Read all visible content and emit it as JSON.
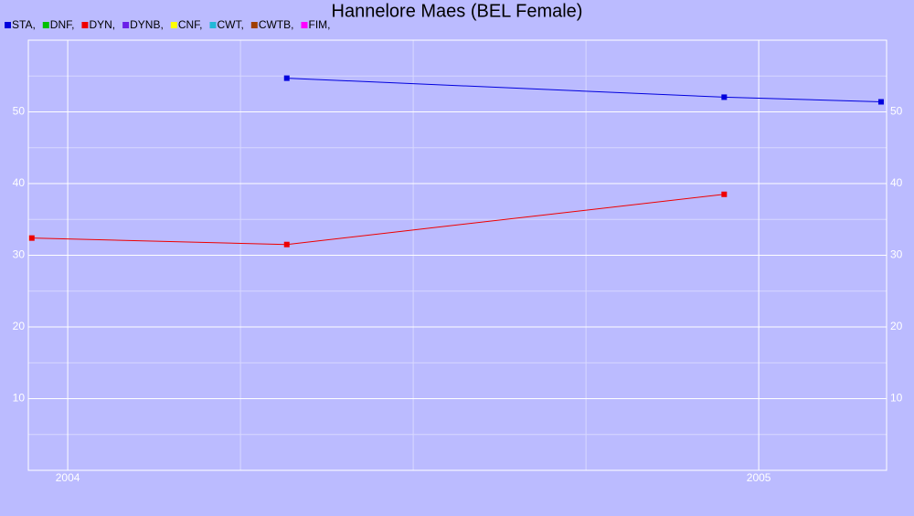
{
  "chart_data": {
    "type": "line",
    "title": "Hannelore Maes (BEL Female)",
    "series": [
      {
        "name": "STA,",
        "color": "#0000dd",
        "x": [
          2004.317,
          2004.95,
          2005.177
        ],
        "values": [
          54.7,
          52.05,
          51.4
        ]
      },
      {
        "name": "DNF,",
        "color": "#00c000",
        "x": [],
        "values": []
      },
      {
        "name": "DYN,",
        "color": "#ee0000",
        "x": [
          2003.948,
          2004.317,
          2004.95
        ],
        "values": [
          32.4,
          31.5,
          38.5
        ]
      },
      {
        "name": "DYNB,",
        "color": "#6a20e8",
        "x": [],
        "values": []
      },
      {
        "name": "CNF,",
        "color": "#ffff00",
        "x": [],
        "values": []
      },
      {
        "name": "CWT,",
        "color": "#22b8d8",
        "x": [],
        "values": []
      },
      {
        "name": "CWTB,",
        "color": "#a04000",
        "x": [],
        "values": []
      },
      {
        "name": "FIM,",
        "color": "#ff00ff",
        "x": [],
        "values": []
      }
    ],
    "xlim": [
      2003.943,
      2005.185
    ],
    "xticks": [
      2004,
      2005
    ],
    "xminor": [
      2004.25,
      2004.5,
      2004.75
    ],
    "ylim": [
      0,
      60
    ],
    "yticks": [
      10,
      20,
      30,
      40,
      50
    ],
    "yminor": [
      5,
      15,
      25,
      35,
      45,
      55
    ],
    "grid": true,
    "legend": "top-left"
  }
}
